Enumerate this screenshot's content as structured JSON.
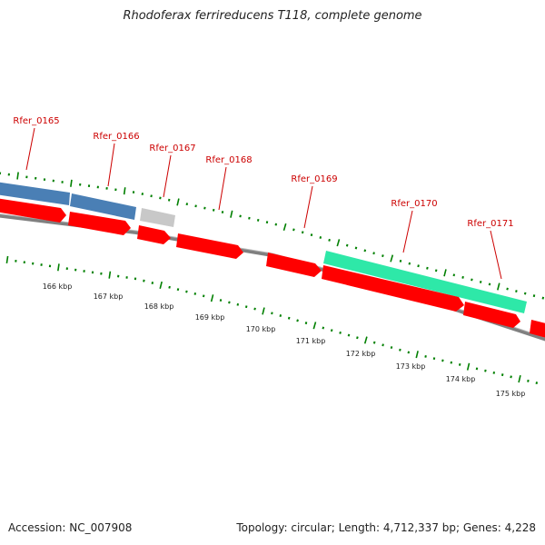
{
  "title": "Rhodoferax ferrireducens T118, complete genome",
  "footer": {
    "accession": "Accession: NC_007908",
    "summary": "Topology: circular; Length: 4,712,337 bp; Genes: 4,228"
  },
  "colors": {
    "gene_label": "#cc0000",
    "cds_red": "#ff0000",
    "gene_blue": "#4a7fb5",
    "gene_grey": "#c8c8c8",
    "gene_green": "#2ee8a8",
    "tick_green": "#008000",
    "backbone": "#808080"
  },
  "gene_labels": [
    "Rfer_0165",
    "Rfer_0166",
    "Rfer_0167",
    "Rfer_0168",
    "Rfer_0169",
    "Rfer_0170",
    "Rfer_0171"
  ],
  "kbp_labels": [
    "166 kbp",
    "167 kbp",
    "168 kbp",
    "169 kbp",
    "170 kbp",
    "171 kbp",
    "172 kbp",
    "173 kbp",
    "174 kbp",
    "175 kbp"
  ]
}
